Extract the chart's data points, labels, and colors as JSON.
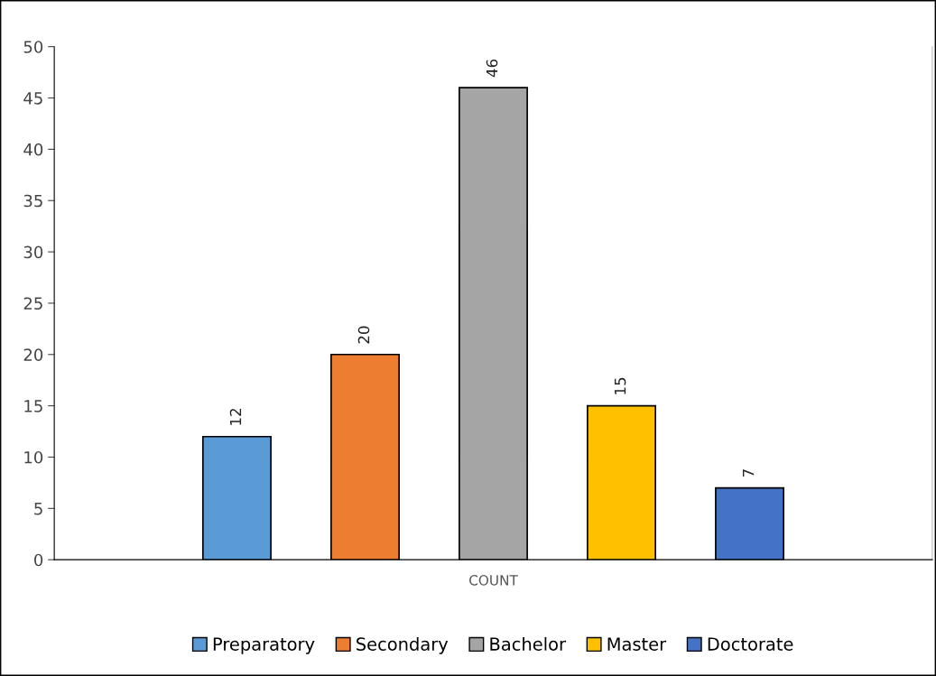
{
  "chart_data": {
    "type": "bar",
    "categories": [
      "COUNT"
    ],
    "series": [
      {
        "name": "Preparatory",
        "color": "#5b9bd5",
        "values": [
          12
        ]
      },
      {
        "name": "Secondary",
        "color": "#ed7d31",
        "values": [
          20
        ]
      },
      {
        "name": "Bachelor",
        "color": "#a5a5a5",
        "values": [
          46
        ]
      },
      {
        "name": "Master",
        "color": "#ffc000",
        "values": [
          15
        ]
      },
      {
        "name": "Doctorate",
        "color": "#4472c4",
        "values": [
          7
        ]
      }
    ],
    "ylim": [
      0,
      50
    ],
    "yticks": [
      0,
      5,
      10,
      15,
      20,
      25,
      30,
      35,
      40,
      45,
      50
    ],
    "data_labels": true,
    "grid": false,
    "legend": "bottom"
  }
}
